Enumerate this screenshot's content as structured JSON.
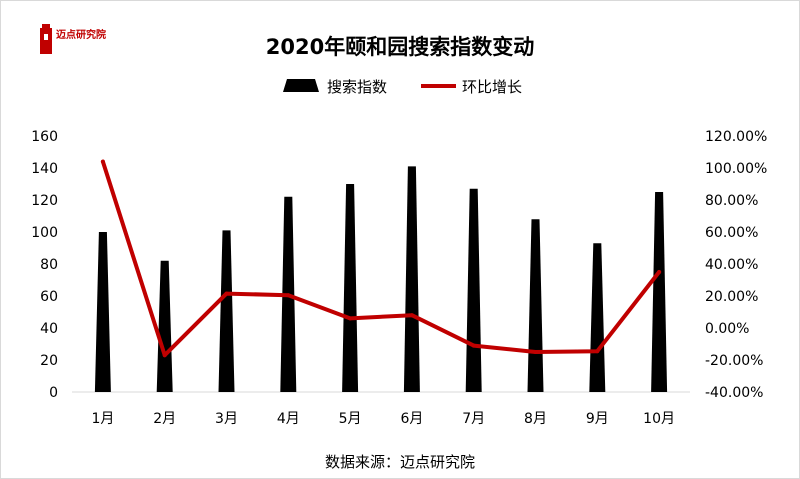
{
  "logo": {
    "text": "迈点研究院"
  },
  "chart_data": {
    "type": "bar+line",
    "title": "2020年颐和园搜索指数变动",
    "categories": [
      "1月",
      "2月",
      "3月",
      "4月",
      "5月",
      "6月",
      "7月",
      "8月",
      "9月",
      "10月"
    ],
    "series": [
      {
        "name": "搜索指数",
        "type": "bar",
        "axis": "left",
        "color": "#000000",
        "values": [
          100,
          82,
          101,
          122,
          130,
          141,
          127,
          108,
          93,
          125
        ]
      },
      {
        "name": "环比增长",
        "type": "line",
        "axis": "right",
        "color": "#c00000",
        "values": [
          104.0,
          -17.0,
          21.5,
          20.5,
          6.0,
          8.0,
          -11.0,
          -15.0,
          -14.5,
          35.0
        ]
      }
    ],
    "left_axis": {
      "min": 0,
      "max": 160,
      "step": 20,
      "ticks": [
        "0",
        "20",
        "40",
        "60",
        "80",
        "100",
        "120",
        "140",
        "160"
      ]
    },
    "right_axis": {
      "min": -40,
      "max": 120,
      "step": 20,
      "ticks": [
        "-40.00%",
        "-20.00%",
        "0.00%",
        "20.00%",
        "40.00%",
        "60.00%",
        "80.00%",
        "100.00%",
        "120.00%"
      ]
    },
    "legend_position": "top-center",
    "grid": false
  },
  "source": "数据来源：迈点研究院"
}
